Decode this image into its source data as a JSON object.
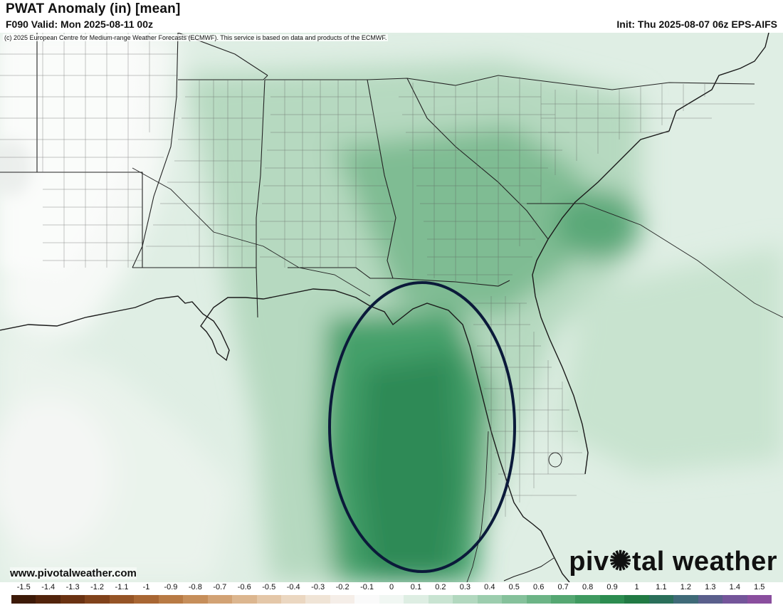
{
  "header": {
    "title": "PWAT Anomaly (in) [mean]",
    "valid": "F090 Valid: Mon 2025-08-11 00z",
    "init": "Init: Thu 2025-08-07 06z EPS-AIFS"
  },
  "copyright": "(c) 2025 European Centre for Medium-range Weather Forecasts (ECMWF). This service is based on data and products of the ECMWF.",
  "footer": {
    "website": "www.pivotalweather.com",
    "logo_before": "piv",
    "logo_after": "tal weather"
  },
  "colorbar": {
    "ticks": [
      "-1.5",
      "-1.4",
      "-1.3",
      "-1.2",
      "-1.1",
      "-1",
      "-0.9",
      "-0.8",
      "-0.7",
      "-0.6",
      "-0.5",
      "-0.4",
      "-0.3",
      "-0.2",
      "-0.1",
      "0",
      "0.1",
      "0.2",
      "0.3",
      "0.4",
      "0.5",
      "0.6",
      "0.7",
      "0.8",
      "0.9",
      "1",
      "1.1",
      "1.2",
      "1.3",
      "1.4",
      "1.5"
    ],
    "colors": [
      "#3d1a08",
      "#52240c",
      "#6a3212",
      "#80421b",
      "#955426",
      "#a86633",
      "#b87a44",
      "#c68e5a",
      "#d2a274",
      "#dcb68f",
      "#e4c7a8",
      "#ebd7c1",
      "#f0e4d6",
      "#f5eee8",
      "#fafafa",
      "#f1f7f3",
      "#deeee3",
      "#c9e4d2",
      "#b2d8bf",
      "#9ccdae",
      "#85c19b",
      "#6cb486",
      "#55a772",
      "#3f9a60",
      "#2c8c50",
      "#217a44",
      "#2a6f5a",
      "#3f6a78",
      "#5a5f8c",
      "#74559a",
      "#8a4e9e"
    ]
  },
  "annotation": {
    "shape": "ellipse",
    "color": "#0b1a3a"
  }
}
